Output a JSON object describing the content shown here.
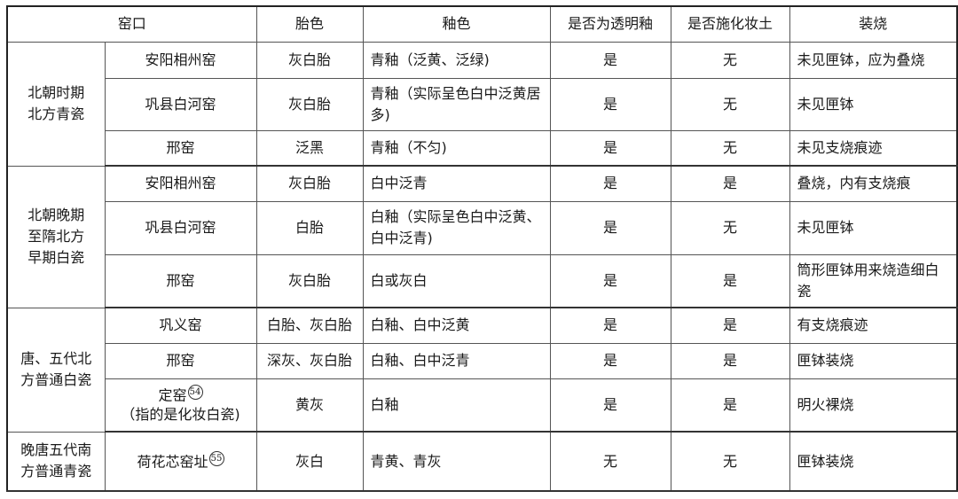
{
  "headers": [
    "窑口",
    "胎色",
    "釉色",
    "是否为透明釉",
    "是否施化妆土",
    "装烧"
  ],
  "groups": [
    {
      "name": "北朝时期\n北方青瓷",
      "rows": [
        {
          "kiln": "安阳相州窑",
          "body": "灰白胎",
          "glaze": "青釉（泛黄、泛绿)",
          "transparent": "是",
          "slip": "无",
          "firing": "未见匣钵，应为叠烧"
        },
        {
          "kiln": "巩县白河窑",
          "body": "灰白胎",
          "glaze": "青釉（实际呈色白中泛黄居多)",
          "transparent": "是",
          "slip": "无",
          "firing": "未见匣钵"
        },
        {
          "kiln": "邢窑",
          "body": "泛黑",
          "glaze": "青釉（不匀)",
          "transparent": "是",
          "slip": "无",
          "firing": "未见支烧痕迹"
        }
      ]
    },
    {
      "name": "北朝晚期\n至隋北方\n早期白瓷",
      "rows": [
        {
          "kiln": "安阳相州窑",
          "body": "灰白胎",
          "glaze": "白中泛青",
          "transparent": "是",
          "slip": "是",
          "firing": "叠烧，内有支烧痕"
        },
        {
          "kiln": "巩县白河窑",
          "body": "白胎",
          "glaze": "白釉（实际呈色白中泛黄、白中泛青)",
          "transparent": "是",
          "slip": "无",
          "firing": "未见匣钵"
        },
        {
          "kiln": "邢窑",
          "body": "灰白胎",
          "glaze": "白或灰白",
          "transparent": "是",
          "slip": "是",
          "firing": "筒形匣钵用来烧造细白瓷"
        }
      ]
    },
    {
      "name": "唐、五代北\n方普通白瓷",
      "rows": [
        {
          "kiln": "巩义窑",
          "body": "白胎、灰白胎",
          "glaze": "白釉、白中泛黄",
          "transparent": "是",
          "slip": "是",
          "firing": "有支烧痕迹"
        },
        {
          "kiln": "邢窑",
          "body": "深灰、灰白胎",
          "glaze": "白釉、白中泛青",
          "transparent": "是",
          "slip": "是",
          "firing": "匣钵装烧"
        },
        {
          "kiln": "定窑",
          "kiln_note": "54",
          "kiln_sub": "（指的是化妆白瓷)",
          "body": "黄灰",
          "glaze": "白釉",
          "transparent": "是",
          "slip": "是",
          "firing": "明火裸烧"
        }
      ]
    },
    {
      "name": "晚唐五代南\n方普通青瓷",
      "rows": [
        {
          "kiln": "荷花芯窑址",
          "kiln_note": "55",
          "body": "灰白",
          "glaze": "青黄、青灰",
          "transparent": "无",
          "slip": "无",
          "firing": "匣钵装烧"
        }
      ]
    }
  ]
}
